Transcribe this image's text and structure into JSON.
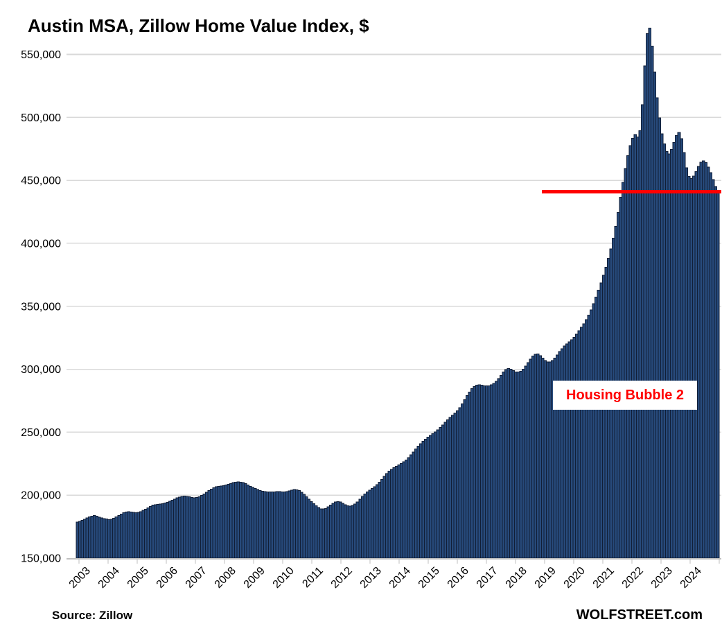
{
  "title": "Austin MSA, Zillow Home Value Index, $",
  "source_note": "Source: Zillow",
  "branding": "WOLFSTREET.com",
  "annotation": {
    "label": "Housing Bubble 2",
    "color": "#FF0000"
  },
  "reference_line": {
    "value": 441000,
    "color": "#FF0000"
  },
  "colors": {
    "bar_fill": "#274A7B",
    "bar_stroke": "#111E36",
    "gridline": "#D9D9D9",
    "axis": "#BFBFBF",
    "text": "#000000",
    "background": "#FFFFFF"
  },
  "chart_data": {
    "type": "bar",
    "title": "Austin MSA, Zillow Home Value Index, $",
    "xlabel": "",
    "ylabel": "",
    "x_start": "2003-01",
    "x_end": "2024-12",
    "x_tick_labels": [
      "2003",
      "2004",
      "2005",
      "2006",
      "2007",
      "2008",
      "2009",
      "2010",
      "2011",
      "2012",
      "2013",
      "2014",
      "2015",
      "2016",
      "2017",
      "2018",
      "2019",
      "2020",
      "2021",
      "2022",
      "2023",
      "2024"
    ],
    "y_ticks": [
      150000,
      200000,
      250000,
      300000,
      350000,
      400000,
      450000,
      500000,
      550000
    ],
    "ylim": [
      150000,
      575000
    ],
    "grid": true,
    "legend": false,
    "annotation_text": "Housing Bubble 2",
    "reference_line_value": 441000,
    "series": [
      {
        "name": "Zillow Home Value Index, Austin MSA, monthly",
        "values": [
          178500,
          179200,
          180000,
          180900,
          181800,
          182700,
          183400,
          183800,
          183400,
          182600,
          181800,
          181300,
          181000,
          180600,
          180900,
          181600,
          182700,
          183900,
          185100,
          186100,
          186700,
          186900,
          186600,
          186300,
          186200,
          186400,
          187000,
          187900,
          188900,
          190000,
          191100,
          192000,
          192500,
          192800,
          193000,
          193300,
          193700,
          194300,
          195100,
          196000,
          196900,
          197800,
          198500,
          199000,
          199200,
          199000,
          198600,
          198200,
          198000,
          198200,
          198800,
          199800,
          201000,
          202300,
          203600,
          204800,
          205800,
          206600,
          207100,
          207400,
          207600,
          208000,
          208600,
          209300,
          209900,
          210300,
          210500,
          210400,
          209900,
          209100,
          208100,
          207100,
          206100,
          205200,
          204400,
          203700,
          203200,
          202800,
          202600,
          202500,
          202600,
          202700,
          202800,
          202800,
          202700,
          202700,
          202900,
          203400,
          204000,
          204400,
          204300,
          203600,
          202300,
          200600,
          198700,
          196800,
          195000,
          193200,
          191500,
          190100,
          189200,
          189000,
          189500,
          190700,
          192200,
          193600,
          194600,
          195000,
          194600,
          193600,
          192500,
          191700,
          191400,
          191800,
          192900,
          194600,
          196700,
          198900,
          200900,
          202600,
          204000,
          205300,
          206700,
          208400,
          210400,
          212600,
          214900,
          217100,
          219000,
          220600,
          221900,
          223000,
          224000,
          225100,
          226400,
          228000,
          229900,
          232000,
          234300,
          236600,
          238800,
          240900,
          242800,
          244500,
          246000,
          247400,
          248800,
          250300,
          251900,
          253700,
          255700,
          257800,
          259900,
          261800,
          263500,
          265000,
          267000,
          269500,
          272500,
          275800,
          279000,
          282000,
          284500,
          286300,
          287300,
          287600,
          287300,
          286900,
          286700,
          286900,
          287600,
          288800,
          290500,
          292700,
          295200,
          297700,
          299700,
          300600,
          300100,
          298900,
          297900,
          297700,
          298500,
          300100,
          302400,
          305200,
          308000,
          310400,
          311900,
          312100,
          310900,
          308900,
          307000,
          305800,
          305700,
          306800,
          308800,
          311300,
          314000,
          316400,
          318400,
          320100,
          321700,
          323400,
          325400,
          327800,
          330500,
          333300,
          336200,
          339400,
          343000,
          347200,
          352000,
          357300,
          362900,
          368700,
          374700,
          381000,
          388000,
          395500,
          404000,
          413500,
          424500,
          436500,
          448500,
          459500,
          469500,
          477500,
          483500,
          486500,
          484500,
          489500,
          510000,
          541000,
          566500,
          571000,
          556500,
          536000,
          515500,
          499500,
          487000,
          479000,
          473000,
          471000,
          474500,
          480000,
          485500,
          488000,
          483000,
          472000,
          460000,
          453000,
          451500,
          453500,
          457000,
          461000,
          464500,
          465500,
          464000,
          460500,
          456000,
          450500,
          445000,
          441500
        ]
      }
    ]
  }
}
